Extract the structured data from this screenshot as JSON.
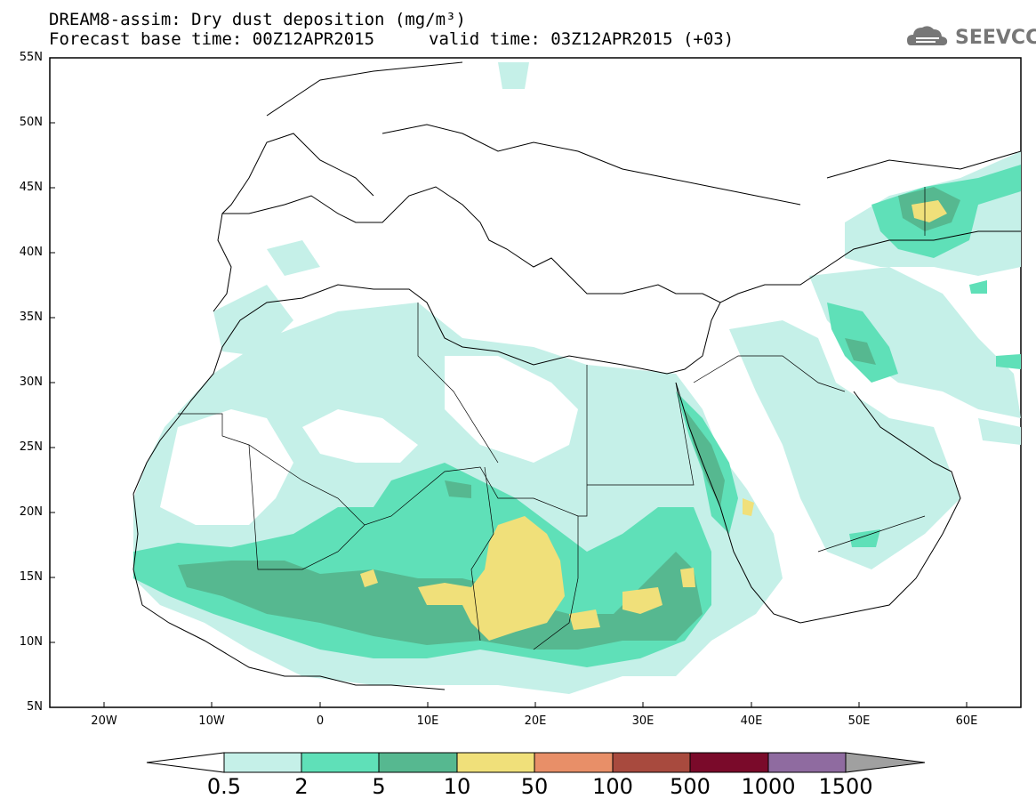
{
  "title_line1": "DREAM8-assim: Dry dust deposition (mg/m³)",
  "title_line2_left": "Forecast base time: 00Z12APR2015",
  "title_line2_right": "valid time: 03Z12APR2015 (+03)",
  "logo_text": "SEEVCCC",
  "lat_labels": [
    "55N",
    "50N",
    "45N",
    "40N",
    "35N",
    "30N",
    "25N",
    "20N",
    "15N",
    "10N",
    "5N"
  ],
  "lon_labels": [
    "20W",
    "10W",
    "0",
    "10E",
    "20E",
    "30E",
    "40E",
    "50E",
    "60E"
  ],
  "colorbar": {
    "labels": [
      "0.5",
      "2",
      "5",
      "10",
      "50",
      "100",
      "500",
      "1000",
      "1500"
    ],
    "colors": [
      "#c5f0e8",
      "#5fe0b8",
      "#56b890",
      "#f0e07a",
      "#e88f68",
      "#a84a3e",
      "#7a0a2a",
      "#8f6ba0",
      "#a0a0a0"
    ]
  },
  "field_colors": {
    "lev1": "#c5f0e8",
    "lev2": "#5fe0b8",
    "lev3": "#56b890",
    "lev4": "#f0e07a"
  }
}
